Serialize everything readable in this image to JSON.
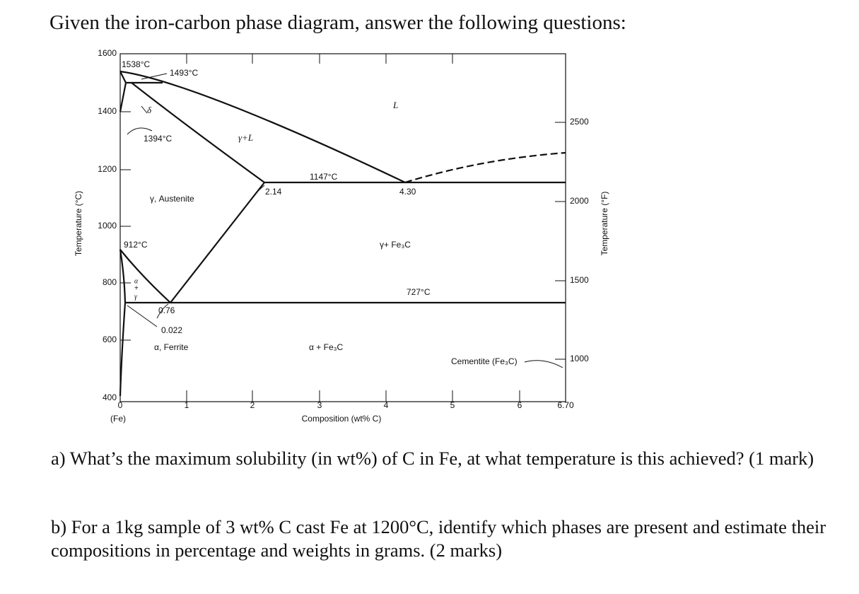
{
  "header": {
    "title": "Given the iron-carbon phase diagram, answer the following questions:"
  },
  "diagram": {
    "y_axis_label": "Temperature (°C)",
    "y2_axis_label": "Temperature (°F)",
    "x_axis_label": "Composition (wt% C)",
    "x_origin_note": "(Fe)",
    "y_ticks": [
      "1600",
      "1400",
      "1200",
      "1000",
      "800",
      "600",
      "400"
    ],
    "y2_ticks": [
      "2500",
      "2000",
      "1500",
      "1000"
    ],
    "x_ticks": [
      "0",
      "1",
      "2",
      "3",
      "4",
      "5",
      "6",
      "6.70"
    ],
    "labels": [
      "1538°C",
      "1493°C",
      "δ",
      "L",
      "1394°C",
      "γ+L",
      "1147°C",
      "2.14",
      "4.30",
      "γ, Austenite",
      "912°C",
      "γ+ Fe₃C",
      "727°C",
      "α",
      "+",
      "γ",
      "0.76",
      "0.022",
      "α, Ferrite",
      "α + Fe₃C",
      "Cementite (Fe₃C)"
    ]
  },
  "questions": [
    "a) What’s the maximum solubility (in wt%) of C in Fe, at what temperature is this achieved? (1 mark)",
    "b) For a 1kg sample of 3 wt% C cast Fe at 1200°C, identify which phases are present and estimate their compositions in percentage and weights in grams. (2 marks)"
  ]
}
